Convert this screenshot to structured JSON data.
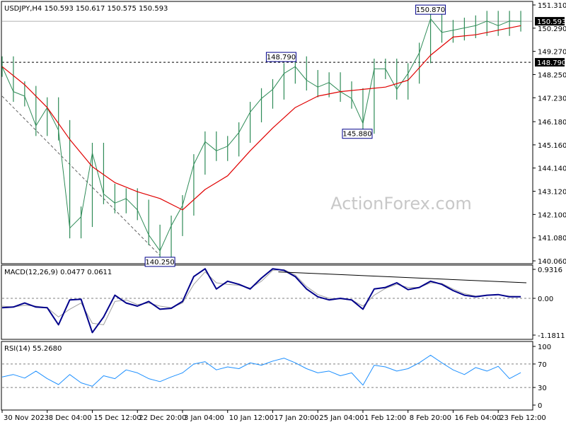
{
  "colors": {
    "background": "#ffffff",
    "frame": "#000000",
    "price_bars": "#2e8b57",
    "moving_average": "#e00000",
    "macd_line": "#00008b",
    "signal_line": "#a0a0a0",
    "rsi_line": "#1e90ff",
    "trendline": "#000000",
    "reference_line": "#808080",
    "watermark": "#c8c8c8"
  },
  "chart_data": [
    {
      "type": "line",
      "panel": "price",
      "header": "USDJPY,H4  150.593 150.617 150.575 150.593",
      "watermark": "ActionForex.com",
      "ylim": [
        140.06,
        151.31
      ],
      "yticks": [
        "151.310",
        "150.290",
        "149.270",
        "148.250",
        "147.230",
        "146.180",
        "145.160",
        "144.140",
        "143.120",
        "142.100",
        "141.080",
        "140.060"
      ],
      "current_price_label": "150.593",
      "current_price": 150.593,
      "reference_line": {
        "value": 148.79,
        "label": "148.790"
      },
      "annotations": [
        {
          "label": "150.870",
          "x": 76.0,
          "y": 150.87,
          "anchor": "top"
        },
        {
          "label": "148.790",
          "x": 49.5,
          "y": 148.79,
          "anchor": "top"
        },
        {
          "label": "145.880",
          "x": 63.0,
          "y": 145.88,
          "anchor": "bottom"
        },
        {
          "label": "140.250",
          "x": 28.0,
          "y": 140.25,
          "anchor": "bottom"
        }
      ],
      "trendline": [
        [
          0,
          147.3
        ],
        [
          28,
          140.3
        ]
      ],
      "series": [
        {
          "kind": "close",
          "x": [
            0,
            2,
            4,
            6,
            8,
            10,
            12,
            14,
            16,
            18,
            20,
            22,
            24,
            26,
            28,
            30,
            32,
            34,
            36,
            38,
            40,
            42,
            44,
            46,
            48,
            50,
            52,
            54,
            56,
            58,
            60,
            62,
            64,
            66,
            68,
            70,
            72,
            74,
            76,
            78,
            80,
            82,
            84,
            86,
            88,
            90,
            92
          ],
          "values": [
            148.6,
            147.5,
            147.3,
            146.0,
            146.8,
            145.8,
            141.5,
            142.0,
            144.8,
            143.0,
            142.6,
            142.8,
            142.3,
            141.2,
            140.5,
            141.6,
            142.5,
            144.3,
            145.3,
            144.9,
            145.1,
            145.7,
            146.6,
            147.2,
            147.6,
            148.3,
            148.6,
            148.0,
            147.7,
            147.9,
            147.5,
            147.2,
            146.1,
            148.5,
            148.5,
            147.6,
            148.3,
            149.2,
            150.7,
            150.1,
            150.2,
            150.3,
            150.4,
            150.6,
            150.4,
            150.6,
            150.59
          ]
        },
        {
          "kind": "moving_average",
          "x": [
            0,
            4,
            8,
            12,
            16,
            20,
            24,
            28,
            32,
            36,
            40,
            44,
            48,
            52,
            56,
            60,
            64,
            68,
            72,
            76,
            80,
            84,
            88,
            92
          ],
          "values": [
            148.6,
            147.8,
            146.8,
            145.4,
            144.2,
            143.5,
            143.1,
            142.8,
            142.3,
            143.2,
            143.8,
            144.9,
            145.9,
            146.8,
            147.3,
            147.5,
            147.6,
            147.7,
            148.0,
            149.1,
            149.9,
            150.0,
            150.2,
            150.4
          ]
        }
      ]
    },
    {
      "type": "line",
      "panel": "macd",
      "header": "MACD(12,26,9) 0.0477 0.0611",
      "ylim": [
        -1.1811,
        0.9316
      ],
      "yticks": [
        "0.9316",
        "0.00",
        "-1.1811"
      ],
      "trendline": [
        [
          49,
          0.85
        ],
        [
          93,
          0.5
        ]
      ],
      "series": [
        {
          "kind": "macd",
          "x": [
            0,
            2,
            4,
            6,
            8,
            10,
            12,
            14,
            16,
            18,
            20,
            22,
            24,
            26,
            28,
            30,
            32,
            34,
            36,
            38,
            40,
            42,
            44,
            46,
            48,
            50,
            52,
            54,
            56,
            58,
            60,
            62,
            64,
            66,
            68,
            70,
            72,
            74,
            76,
            78,
            80,
            82,
            84,
            86,
            88,
            90,
            92
          ],
          "values": [
            -0.3,
            -0.28,
            -0.15,
            -0.28,
            -0.3,
            -0.85,
            -0.05,
            -0.03,
            -1.1,
            -0.6,
            0.1,
            -0.15,
            -0.25,
            -0.1,
            -0.35,
            -0.32,
            -0.1,
            0.7,
            0.95,
            0.3,
            0.55,
            0.45,
            0.3,
            0.65,
            0.95,
            0.9,
            0.7,
            0.3,
            0.05,
            -0.05,
            0.0,
            -0.05,
            -0.35,
            0.3,
            0.35,
            0.5,
            0.28,
            0.35,
            0.55,
            0.45,
            0.25,
            0.1,
            0.05,
            0.1,
            0.12,
            0.05,
            0.05
          ]
        },
        {
          "kind": "signal",
          "x": [
            0,
            2,
            4,
            6,
            8,
            10,
            12,
            14,
            16,
            18,
            20,
            22,
            24,
            26,
            28,
            30,
            32,
            34,
            36,
            38,
            40,
            42,
            44,
            46,
            48,
            50,
            52,
            54,
            56,
            58,
            60,
            62,
            64,
            66,
            68,
            70,
            72,
            74,
            76,
            78,
            80,
            82,
            84,
            86,
            88,
            90,
            92
          ],
          "values": [
            -0.25,
            -0.28,
            -0.22,
            -0.25,
            -0.3,
            -0.6,
            -0.35,
            -0.15,
            -0.8,
            -0.85,
            -0.1,
            -0.05,
            -0.2,
            -0.15,
            -0.25,
            -0.3,
            -0.15,
            0.45,
            0.85,
            0.5,
            0.45,
            0.42,
            0.33,
            0.55,
            0.9,
            0.92,
            0.75,
            0.38,
            0.12,
            0.0,
            -0.02,
            -0.05,
            -0.25,
            0.1,
            0.32,
            0.45,
            0.35,
            0.35,
            0.5,
            0.48,
            0.3,
            0.15,
            0.07,
            0.1,
            0.12,
            0.07,
            0.06
          ]
        }
      ]
    },
    {
      "type": "line",
      "panel": "rsi",
      "header": "RSI(14) 55.2680",
      "ylim": [
        0,
        100
      ],
      "yticks": [
        "100",
        "70",
        "30",
        "0"
      ],
      "reference_levels": [
        70,
        30
      ],
      "series": [
        {
          "kind": "rsi",
          "x": [
            0,
            2,
            4,
            6,
            8,
            10,
            12,
            14,
            16,
            18,
            20,
            22,
            24,
            26,
            28,
            30,
            32,
            34,
            36,
            38,
            40,
            42,
            44,
            46,
            48,
            50,
            52,
            54,
            56,
            58,
            60,
            62,
            64,
            66,
            68,
            70,
            72,
            74,
            76,
            78,
            80,
            82,
            84,
            86,
            88,
            90,
            92
          ],
          "values": [
            48,
            52,
            46,
            58,
            45,
            35,
            52,
            38,
            32,
            50,
            45,
            60,
            55,
            45,
            40,
            48,
            55,
            70,
            74,
            60,
            65,
            62,
            72,
            68,
            75,
            80,
            72,
            62,
            55,
            58,
            50,
            55,
            34,
            68,
            65,
            58,
            62,
            72,
            85,
            72,
            60,
            52,
            64,
            58,
            66,
            45,
            55.27
          ]
        }
      ]
    }
  ],
  "x_axis": {
    "xlim": [
      0,
      94
    ],
    "ticks": [
      {
        "x": 0,
        "label": "30 Nov 2023"
      },
      {
        "x": 8,
        "label": "8 Dec 04:00"
      },
      {
        "x": 16,
        "label": "15 Dec 12:00"
      },
      {
        "x": 24,
        "label": "22 Dec 20:00"
      },
      {
        "x": 32,
        "label": "3 Jan 04:00"
      },
      {
        "x": 40,
        "label": "10 Jan 12:00"
      },
      {
        "x": 48,
        "label": "17 Jan 20:00"
      },
      {
        "x": 56,
        "label": "25 Jan 04:00"
      },
      {
        "x": 64,
        "label": "1 Feb 12:00"
      },
      {
        "x": 72,
        "label": "8 Feb 20:00"
      },
      {
        "x": 80,
        "label": "16 Feb 04:00"
      },
      {
        "x": 88,
        "label": "23 Feb 12:00"
      }
    ]
  }
}
